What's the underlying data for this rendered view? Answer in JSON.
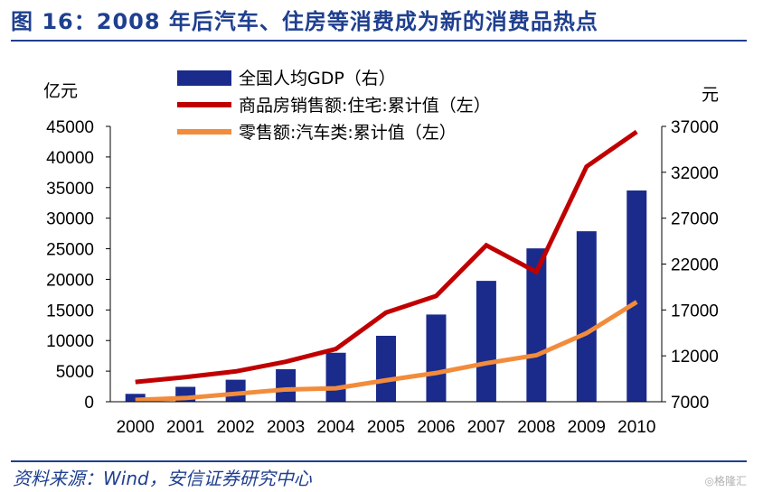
{
  "title": "图 16：2008 年后汽车、住房等消费成为新的消费品热点",
  "source": "资料来源：Wind，安信证券研究中心",
  "watermark": "◎格隆汇",
  "chart_data": {
    "type": "bar+line",
    "categories": [
      "2000",
      "2001",
      "2002",
      "2003",
      "2004",
      "2005",
      "2006",
      "2007",
      "2008",
      "2009",
      "2010"
    ],
    "left_axis": {
      "unit": "亿元",
      "min": 0,
      "max": 45000,
      "step": 5000,
      "ticks": [
        "0",
        "5000",
        "10000",
        "15000",
        "20000",
        "25000",
        "30000",
        "35000",
        "40000",
        "45000"
      ]
    },
    "right_axis": {
      "unit": "元",
      "min": 7000,
      "max": 37000,
      "step": 5000,
      "ticks": [
        "7000",
        "12000",
        "17000",
        "22000",
        "27000",
        "32000",
        "37000"
      ]
    },
    "series": [
      {
        "name": "全国人均GDP（右）",
        "kind": "bar",
        "axis": "right",
        "color": "#1a2b8c",
        "values": [
          7858,
          8622,
          9398,
          10542,
          12336,
          14185,
          16500,
          20169,
          23708,
          25575,
          30015
        ]
      },
      {
        "name": "商品房销售额:住宅:累计值（左）",
        "kind": "line",
        "axis": "left",
        "color": "#c00000",
        "values": [
          3229,
          4021,
          4957,
          6543,
          8619,
          14564,
          17288,
          25566,
          21196,
          38433,
          44121
        ]
      },
      {
        "name": "零售额:汽车类:累计值（左）",
        "kind": "line",
        "axis": "left",
        "color": "#f28c3c",
        "values": [
          300,
          600,
          1300,
          2000,
          2200,
          3500,
          4700,
          6300,
          7600,
          11200,
          16300
        ]
      }
    ],
    "legend_placement": "top-left",
    "grid": false
  }
}
